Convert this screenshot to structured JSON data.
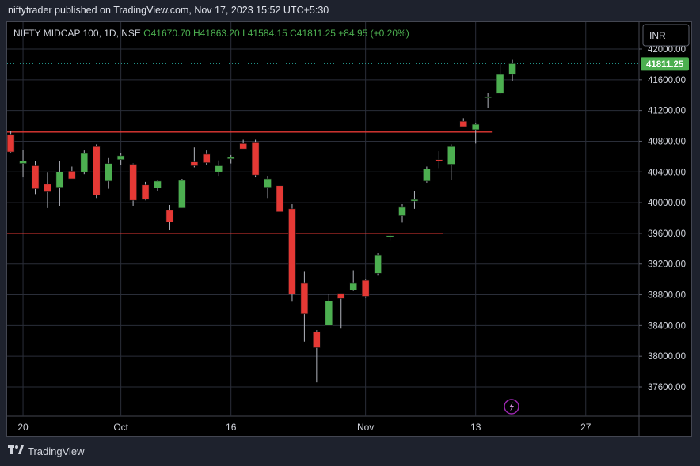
{
  "header": {
    "published": "niftytrader published on TradingView.com, Nov 17, 2023 15:52 UTC+5:30"
  },
  "footer": {
    "brand": "TradingView",
    "logo": "tv-logo-icon"
  },
  "chart_data": {
    "type": "candlestick",
    "symbol_line": {
      "name": "NIFTY MIDCAP 100, 1D, NSE",
      "open": "O41670.70",
      "high": "H41863.20",
      "low": "L41584.15",
      "close": "C41811.25",
      "change": "+84.95 (+0.20%)"
    },
    "currency": "INR",
    "last_price": "41811.25",
    "ylim": [
      37400,
      42120
    ],
    "y_ticks": [
      "42000.00",
      "41600.00",
      "41200.00",
      "40800.00",
      "40400.00",
      "40000.00",
      "39600.00",
      "39200.00",
      "38800.00",
      "38400.00",
      "38000.00",
      "37600.00"
    ],
    "x_ticks": [
      {
        "label": "20",
        "index": 1
      },
      {
        "label": "Oct",
        "index": 9
      },
      {
        "label": "16",
        "index": 18
      },
      {
        "label": "Nov",
        "index": 29
      },
      {
        "label": "13",
        "index": 38
      },
      {
        "label": "27",
        "index": 47
      }
    ],
    "horizontal_lines": [
      {
        "price": 40920,
        "from_index": 0,
        "to_index": 39,
        "color": "#e53935"
      },
      {
        "price": 39600,
        "from_index": 0,
        "to_index": 35,
        "color": "#e53935"
      }
    ],
    "candles": [
      {
        "o": 40880,
        "h": 40930,
        "l": 40640,
        "c": 40660
      },
      {
        "o": 40510,
        "h": 40690,
        "l": 40330,
        "c": 40540
      },
      {
        "o": 40480,
        "h": 40540,
        "l": 40110,
        "c": 40180
      },
      {
        "o": 40240,
        "h": 40390,
        "l": 39930,
        "c": 40140
      },
      {
        "o": 40200,
        "h": 40540,
        "l": 39950,
        "c": 40400
      },
      {
        "o": 40410,
        "h": 40470,
        "l": 40310,
        "c": 40310
      },
      {
        "o": 40400,
        "h": 40680,
        "l": 40370,
        "c": 40640
      },
      {
        "o": 40730,
        "h": 40760,
        "l": 40060,
        "c": 40100
      },
      {
        "o": 40280,
        "h": 40580,
        "l": 40180,
        "c": 40510
      },
      {
        "o": 40560,
        "h": 40640,
        "l": 40490,
        "c": 40610
      },
      {
        "o": 40500,
        "h": 40510,
        "l": 39960,
        "c": 40030
      },
      {
        "o": 40230,
        "h": 40270,
        "l": 40030,
        "c": 40040
      },
      {
        "o": 40190,
        "h": 40290,
        "l": 40150,
        "c": 40280
      },
      {
        "o": 39900,
        "h": 39970,
        "l": 39640,
        "c": 39750
      },
      {
        "o": 39930,
        "h": 40310,
        "l": 39930,
        "c": 40290
      },
      {
        "o": 40530,
        "h": 40720,
        "l": 40460,
        "c": 40480
      },
      {
        "o": 40630,
        "h": 40680,
        "l": 40490,
        "c": 40520
      },
      {
        "o": 40400,
        "h": 40550,
        "l": 40340,
        "c": 40480
      },
      {
        "o": 40570,
        "h": 40620,
        "l": 40510,
        "c": 40590
      },
      {
        "o": 40770,
        "h": 40820,
        "l": 40700,
        "c": 40700
      },
      {
        "o": 40780,
        "h": 40820,
        "l": 40330,
        "c": 40360
      },
      {
        "o": 40200,
        "h": 40340,
        "l": 40060,
        "c": 40310
      },
      {
        "o": 40220,
        "h": 40230,
        "l": 39790,
        "c": 39880
      },
      {
        "o": 39920,
        "h": 39980,
        "l": 38710,
        "c": 38810
      },
      {
        "o": 38950,
        "h": 39100,
        "l": 38190,
        "c": 38550
      },
      {
        "o": 38320,
        "h": 38340,
        "l": 37660,
        "c": 38110
      },
      {
        "o": 38400,
        "h": 38810,
        "l": 38400,
        "c": 38720
      },
      {
        "o": 38820,
        "h": 38820,
        "l": 38360,
        "c": 38750
      },
      {
        "o": 38860,
        "h": 39120,
        "l": 38850,
        "c": 38950
      },
      {
        "o": 38990,
        "h": 39000,
        "l": 38760,
        "c": 38780
      },
      {
        "o": 39080,
        "h": 39340,
        "l": 39050,
        "c": 39320
      },
      {
        "o": 39560,
        "h": 39590,
        "l": 39510,
        "c": 39570
      },
      {
        "o": 39830,
        "h": 39980,
        "l": 39740,
        "c": 39940
      },
      {
        "o": 40020,
        "h": 40150,
        "l": 39920,
        "c": 40040
      },
      {
        "o": 40280,
        "h": 40470,
        "l": 40260,
        "c": 40440
      },
      {
        "o": 40560,
        "h": 40670,
        "l": 40450,
        "c": 40540
      },
      {
        "o": 40500,
        "h": 40760,
        "l": 40290,
        "c": 40730
      },
      {
        "o": 41060,
        "h": 41100,
        "l": 40980,
        "c": 40990
      },
      {
        "o": 40950,
        "h": 41040,
        "l": 40770,
        "c": 41020
      },
      {
        "o": 41370,
        "h": 41430,
        "l": 41230,
        "c": 41380
      },
      {
        "o": 41420,
        "h": 41810,
        "l": 41410,
        "c": 41670
      },
      {
        "o": 41670,
        "h": 41860,
        "l": 41580,
        "c": 41810
      }
    ]
  }
}
